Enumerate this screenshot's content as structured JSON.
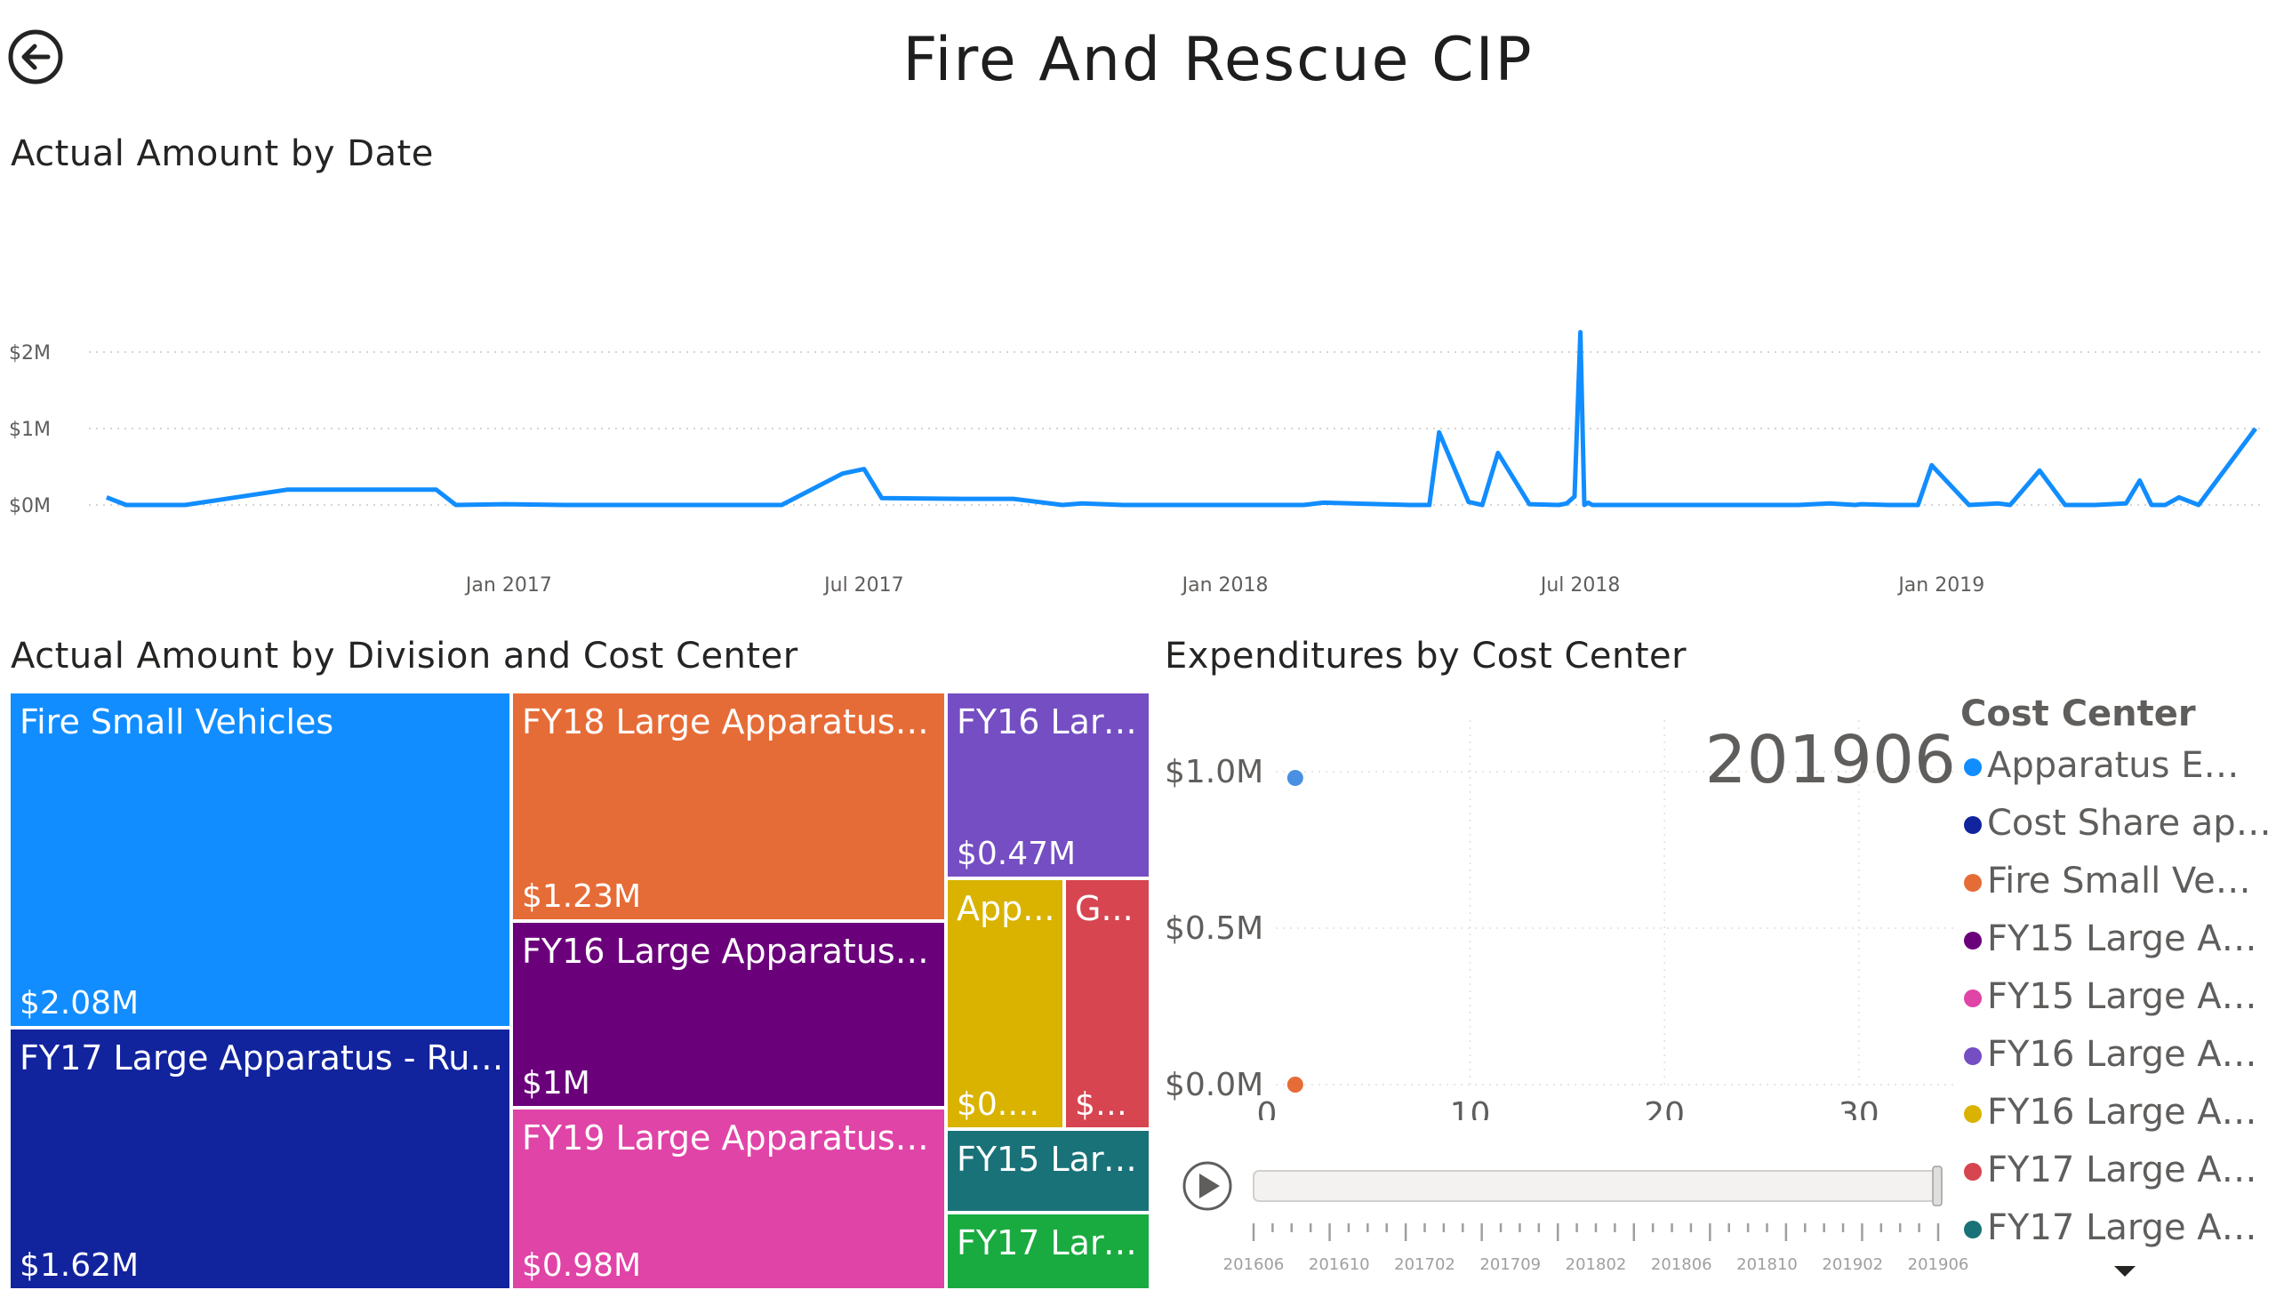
{
  "page": {
    "title": "Fire And Rescue CIP",
    "back_icon": "back-arrow-icon"
  },
  "line_chart": {
    "title": "Actual Amount by Date",
    "color": "#118dff",
    "chart_data": {
      "type": "line",
      "title": "Actual Amount by Date",
      "xlabel": "",
      "ylabel": "",
      "y_ticks": [
        "$0M",
        "$1M",
        "$2M"
      ],
      "x_ticks": [
        "Jan 2017",
        "Jul 2017",
        "Jan 2018",
        "Jul 2018",
        "Jan 2019"
      ],
      "ylim": [
        0,
        2000000
      ],
      "grid": true,
      "x": [
        "2016-06-10",
        "2016-06-20",
        "2016-07-20",
        "2016-09-10",
        "2016-11-25",
        "2016-12-05",
        "2016-12-30",
        "2017-01-30",
        "2017-03-15",
        "2017-04-30",
        "2017-05-20",
        "2017-06-20",
        "2017-07-01",
        "2017-07-10",
        "2017-08-20",
        "2017-09-15",
        "2017-10-10",
        "2017-10-20",
        "2017-11-10",
        "2017-12-01",
        "2018-01-30",
        "2018-02-10",
        "2018-02-20",
        "2018-04-05",
        "2018-04-15",
        "2018-04-20",
        "2018-05-05",
        "2018-05-12",
        "2018-05-20",
        "2018-06-05",
        "2018-06-20",
        "2018-06-24",
        "2018-06-28",
        "2018-07-01",
        "2018-07-03",
        "2018-07-05",
        "2018-07-07",
        "2018-07-10",
        "2018-08-20",
        "2018-09-30",
        "2018-10-20",
        "2018-11-05",
        "2018-11-18",
        "2018-11-21",
        "2018-12-05",
        "2018-12-20",
        "2018-12-27",
        "2019-01-15",
        "2019-01-30",
        "2019-02-05",
        "2019-02-20",
        "2019-03-05",
        "2019-03-12",
        "2019-03-20",
        "2019-04-05",
        "2019-04-12",
        "2019-04-18",
        "2019-04-25",
        "2019-05-02",
        "2019-05-12",
        "2019-06-10"
      ],
      "values": [
        100000,
        0,
        0,
        200000,
        200000,
        0,
        10000,
        0,
        0,
        0,
        0,
        410000,
        470000,
        90000,
        80000,
        80000,
        0,
        20000,
        0,
        0,
        0,
        0,
        30000,
        0,
        0,
        950000,
        40000,
        0,
        680000,
        10000,
        0,
        20000,
        110000,
        2260000,
        0,
        30000,
        0,
        0,
        0,
        0,
        0,
        20000,
        0,
        10000,
        0,
        0,
        520000,
        0,
        20000,
        0,
        450000,
        0,
        0,
        0,
        20000,
        320000,
        0,
        0,
        100000,
        0,
        1000000
      ]
    }
  },
  "treemap": {
    "title": "Actual Amount by Division and Cost Center",
    "tiles": [
      {
        "label": "Fire Small Vehicles",
        "value": "$2.08M",
        "color": "#118dff"
      },
      {
        "label": "FY17 Large Apparatus - Rural",
        "value": "$1.62M",
        "color": "#12239e"
      },
      {
        "label": "FY18 Large Apparatus - ...",
        "value": "$1.23M",
        "color": "#e66c37"
      },
      {
        "label": "FY16 Large Apparatus - ...",
        "value": "$1M",
        "color": "#6b007b"
      },
      {
        "label": "FY19 Large Apparatus - ...",
        "value": "$0.98M",
        "color": "#e044a7"
      },
      {
        "label": "FY16 Larg...",
        "value": "$0.47M",
        "color": "#744ec2"
      },
      {
        "label": "App...",
        "value": "$0.3...",
        "color": "#d9b300"
      },
      {
        "label": "G...",
        "value": "$0....",
        "color": "#d64550"
      },
      {
        "label": "FY15 Larg...",
        "value": "",
        "color": "#197278"
      },
      {
        "label": "FY17 Larg...",
        "value": "",
        "color": "#1aab40"
      }
    ]
  },
  "scatter": {
    "title": "Expenditures by Cost Center",
    "frame_label": "201906",
    "play_icon": "play-icon",
    "chart_data": {
      "type": "scatter",
      "title": "Expenditures by Cost Center",
      "x_ticks": [
        "0",
        "10",
        "20",
        "30"
      ],
      "y_ticks": [
        "$0.0M",
        "$0.5M",
        "$1.0M"
      ],
      "xlim": [
        0,
        35
      ],
      "ylim": [
        0,
        1.0
      ],
      "grid": true,
      "series": [
        {
          "name": "Apparatus Emer...",
          "color": "#4a90e2",
          "points": [
            [
              1,
              0.98
            ]
          ]
        },
        {
          "name": "Fire Small Vehicles",
          "color": "#e66c37",
          "points": [
            [
              1,
              0.0
            ]
          ]
        }
      ]
    },
    "play_axis": {
      "labels": [
        "201606",
        "201610",
        "201702",
        "201709",
        "201802",
        "201806",
        "201810",
        "201902",
        "201906"
      ]
    }
  },
  "legend": {
    "title": "Cost Center",
    "items": [
      {
        "label": "Apparatus Emer...",
        "color": "#118dff"
      },
      {
        "label": "Cost Share appa...",
        "color": "#12239e"
      },
      {
        "label": "Fire Small Vehicles",
        "color": "#e66c37"
      },
      {
        "label": "FY15 Large Appa...",
        "color": "#6b007b"
      },
      {
        "label": "FY15 Large Appa...",
        "color": "#e044a7"
      },
      {
        "label": "FY16 Large Appa...",
        "color": "#744ec2"
      },
      {
        "label": "FY16 Large Appa...",
        "color": "#d9b300"
      },
      {
        "label": "FY17 Large Appa...",
        "color": "#d64550"
      },
      {
        "label": "FY17 Large Appa...",
        "color": "#197278"
      }
    ],
    "more_icon": "chevron-down-icon"
  }
}
